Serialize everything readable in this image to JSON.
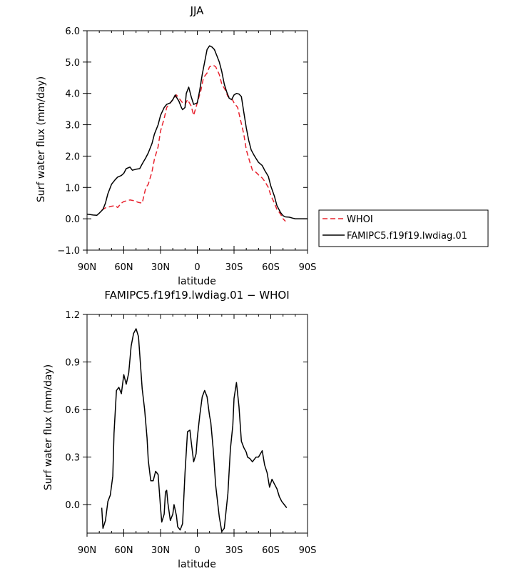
{
  "chart_data": [
    {
      "type": "line",
      "title": "JJA",
      "xlabel": "latitude",
      "ylabel": "Surf water flux (mm/day)",
      "xlim": [
        90,
        -90
      ],
      "ylim": [
        -1.0,
        6.0
      ],
      "xticks": [
        {
          "value": 90,
          "label": "90N"
        },
        {
          "value": 60,
          "label": "60N"
        },
        {
          "value": 30,
          "label": "30N"
        },
        {
          "value": 0,
          "label": "0"
        },
        {
          "value": -30,
          "label": "30S"
        },
        {
          "value": -60,
          "label": "60S"
        },
        {
          "value": -90,
          "label": "90S"
        }
      ],
      "yticks": [
        {
          "value": -1.0,
          "label": "−1.0"
        },
        {
          "value": 0.0,
          "label": "0.0"
        },
        {
          "value": 1.0,
          "label": "1.0"
        },
        {
          "value": 2.0,
          "label": "2.0"
        },
        {
          "value": 3.0,
          "label": "3.0"
        },
        {
          "value": 4.0,
          "label": "4.0"
        },
        {
          "value": 5.0,
          "label": "5.0"
        },
        {
          "value": 6.0,
          "label": "6.0"
        }
      ],
      "legend_position": "right, outside plot",
      "series": [
        {
          "name": "WHOI",
          "color": "#e8232f",
          "dash": "dashed",
          "x": [
            78,
            75,
            72,
            70,
            67,
            65,
            62,
            60,
            57,
            55,
            52,
            50,
            48,
            45,
            42,
            40,
            37,
            35,
            32,
            30,
            27,
            25,
            22,
            20,
            17,
            15,
            12,
            10,
            8,
            5,
            3,
            0,
            -3,
            -5,
            -8,
            -10,
            -13,
            -15,
            -18,
            -20,
            -23,
            -25,
            -28,
            -30,
            -33,
            -35,
            -38,
            -40,
            -43,
            -45,
            -48,
            -50,
            -53,
            -55,
            -58,
            -60,
            -63,
            -65,
            -68,
            -70,
            -72
          ],
          "y": [
            0.28,
            0.35,
            0.38,
            0.4,
            0.42,
            0.36,
            0.5,
            0.55,
            0.58,
            0.6,
            0.58,
            0.55,
            0.52,
            0.5,
            1.0,
            1.1,
            1.5,
            1.9,
            2.3,
            2.8,
            3.2,
            3.55,
            3.7,
            3.8,
            3.95,
            3.85,
            3.7,
            3.65,
            3.8,
            3.6,
            3.3,
            3.7,
            4.1,
            4.5,
            4.65,
            4.85,
            4.9,
            4.85,
            4.6,
            4.3,
            4.1,
            3.9,
            3.85,
            3.7,
            3.55,
            3.2,
            2.7,
            2.2,
            1.8,
            1.55,
            1.48,
            1.4,
            1.3,
            1.2,
            1.0,
            0.75,
            0.5,
            0.3,
            0.15,
            0.0,
            -0.08
          ]
        },
        {
          "name": "FAMIPC5.f19f19.lwdiag.01",
          "color": "#000000",
          "dash": "solid",
          "x": [
            90,
            87,
            85,
            82,
            80,
            77,
            75,
            73,
            70,
            67,
            65,
            62,
            60,
            58,
            55,
            53,
            50,
            47,
            45,
            42,
            40,
            37,
            35,
            32,
            30,
            27,
            25,
            22,
            20,
            18,
            17,
            15,
            13,
            12,
            10,
            9,
            7,
            5,
            3,
            1,
            0,
            -2,
            -4,
            -6,
            -8,
            -10,
            -12,
            -14,
            -16,
            -18,
            -20,
            -22,
            -24,
            -26,
            -28,
            -30,
            -32,
            -34,
            -36,
            -38,
            -40,
            -42,
            -44,
            -46,
            -48,
            -50,
            -53,
            -55,
            -58,
            -60,
            -63,
            -65,
            -68,
            -70,
            -72,
            -75,
            -78,
            -80,
            -85,
            -90
          ],
          "y": [
            0.15,
            0.13,
            0.12,
            0.11,
            0.18,
            0.3,
            0.5,
            0.8,
            1.1,
            1.25,
            1.33,
            1.38,
            1.45,
            1.6,
            1.65,
            1.55,
            1.58,
            1.6,
            1.75,
            1.95,
            2.1,
            2.4,
            2.7,
            3.0,
            3.3,
            3.55,
            3.65,
            3.7,
            3.8,
            3.95,
            3.88,
            3.75,
            3.55,
            3.48,
            3.55,
            4.0,
            4.2,
            3.9,
            3.65,
            3.68,
            3.7,
            4.1,
            4.6,
            5.0,
            5.4,
            5.52,
            5.48,
            5.4,
            5.2,
            5.0,
            4.7,
            4.3,
            4.05,
            3.85,
            3.8,
            3.95,
            4.0,
            3.98,
            3.9,
            3.4,
            2.9,
            2.5,
            2.2,
            2.05,
            1.92,
            1.8,
            1.7,
            1.55,
            1.35,
            1.05,
            0.72,
            0.42,
            0.2,
            0.1,
            0.06,
            0.05,
            0.02,
            0.0,
            0.0,
            0.0
          ]
        }
      ]
    },
    {
      "type": "line",
      "title": "FAMIPC5.f19f19.lwdiag.01 − WHOI",
      "xlabel": "latitude",
      "ylabel": "Surf water flux (mm/day)",
      "xlim": [
        90,
        -90
      ],
      "ylim": [
        -0.18,
        1.2
      ],
      "xticks": [
        {
          "value": 90,
          "label": "90N"
        },
        {
          "value": 60,
          "label": "60N"
        },
        {
          "value": 30,
          "label": "30N"
        },
        {
          "value": 0,
          "label": "0"
        },
        {
          "value": -30,
          "label": "30S"
        },
        {
          "value": -60,
          "label": "60S"
        },
        {
          "value": -90,
          "label": "90S"
        }
      ],
      "yticks": [
        {
          "value": 0.0,
          "label": "0.0"
        },
        {
          "value": 0.3,
          "label": "0.3"
        },
        {
          "value": 0.6,
          "label": "0.6"
        },
        {
          "value": 0.9,
          "label": "0.9"
        },
        {
          "value": 1.2,
          "label": "1.2"
        }
      ],
      "series": [
        {
          "color": "#000000",
          "dash": "solid",
          "x": [
            78,
            77,
            75,
            73,
            71,
            69,
            68,
            66,
            64,
            62,
            60,
            58,
            56,
            54,
            52,
            50,
            48,
            45,
            43,
            41,
            40,
            38,
            36,
            34,
            32,
            30,
            29,
            27,
            26,
            25,
            24,
            22,
            20,
            19,
            17,
            16,
            14,
            12,
            10,
            8,
            6,
            5,
            3,
            1,
            0,
            -2,
            -4,
            -6,
            -8,
            -10,
            -11,
            -13,
            -15,
            -18,
            -20,
            -22,
            -25,
            -27,
            -29,
            -30,
            -32,
            -34,
            -36,
            -38,
            -40,
            -41,
            -43,
            -45,
            -48,
            -50,
            -53,
            -55,
            -57,
            -59,
            -61,
            -63,
            -65,
            -67,
            -69,
            -71,
            -73
          ],
          "y": [
            -0.02,
            -0.15,
            -0.1,
            0.02,
            0.06,
            0.18,
            0.45,
            0.72,
            0.74,
            0.7,
            0.82,
            0.76,
            0.83,
            1.0,
            1.08,
            1.11,
            1.06,
            0.73,
            0.6,
            0.42,
            0.28,
            0.15,
            0.15,
            0.21,
            0.19,
            -0.02,
            -0.11,
            -0.06,
            0.08,
            0.09,
            0.01,
            -0.1,
            -0.06,
            0.0,
            -0.07,
            -0.14,
            -0.16,
            -0.12,
            0.2,
            0.46,
            0.47,
            0.4,
            0.27,
            0.32,
            0.42,
            0.56,
            0.68,
            0.72,
            0.68,
            0.56,
            0.52,
            0.35,
            0.12,
            -0.08,
            -0.17,
            -0.15,
            0.07,
            0.35,
            0.5,
            0.67,
            0.77,
            0.62,
            0.4,
            0.36,
            0.33,
            0.3,
            0.29,
            0.27,
            0.3,
            0.3,
            0.34,
            0.25,
            0.2,
            0.11,
            0.16,
            0.13,
            0.1,
            0.05,
            0.02,
            0.0,
            -0.02
          ]
        }
      ]
    }
  ]
}
